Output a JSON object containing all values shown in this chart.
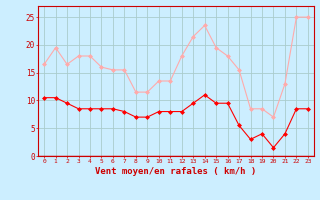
{
  "hours": [
    0,
    1,
    2,
    3,
    4,
    5,
    6,
    7,
    8,
    9,
    10,
    11,
    12,
    13,
    14,
    15,
    16,
    17,
    18,
    19,
    20,
    21,
    22,
    23
  ],
  "wind_avg": [
    10.5,
    10.5,
    9.5,
    8.5,
    8.5,
    8.5,
    8.5,
    8.0,
    7.0,
    7.0,
    8.0,
    8.0,
    8.0,
    9.5,
    11.0,
    9.5,
    9.5,
    5.5,
    3.0,
    4.0,
    1.5,
    4.0,
    8.5,
    8.5
  ],
  "wind_gust": [
    16.5,
    19.5,
    16.5,
    18.0,
    18.0,
    16.0,
    15.5,
    15.5,
    11.5,
    11.5,
    13.5,
    13.5,
    18.0,
    21.5,
    23.5,
    19.5,
    18.0,
    15.5,
    8.5,
    8.5,
    7.0,
    13.0,
    25.0,
    25.0
  ],
  "color_avg": "#ff0000",
  "color_gust": "#ffaaaa",
  "bg_color": "#cceeff",
  "grid_color": "#aacccc",
  "xlabel": "Vent moyen/en rafales ( km/h )",
  "xlabel_color": "#cc0000",
  "tick_color": "#cc0000",
  "spine_color": "#cc0000",
  "ylim": [
    0,
    27
  ],
  "yticks": [
    0,
    5,
    10,
    15,
    20,
    25
  ],
  "marker": "D",
  "markersize": 2.0,
  "linewidth": 0.8
}
